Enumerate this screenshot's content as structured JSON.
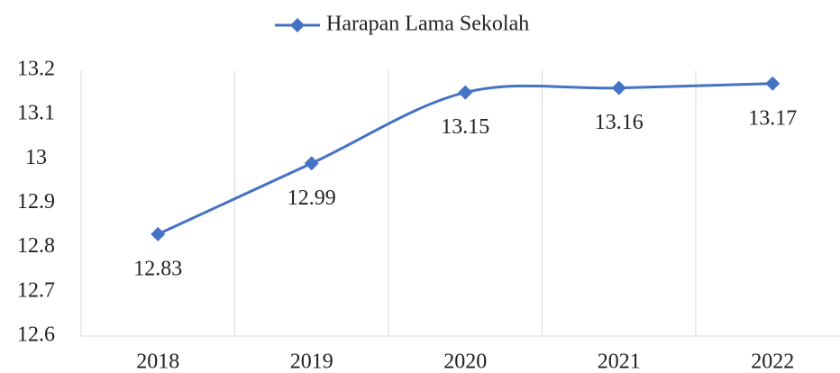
{
  "chart_data": {
    "type": "line",
    "categories": [
      "2018",
      "2019",
      "2020",
      "2021",
      "2022"
    ],
    "series": [
      {
        "name": "Harapan Lama Sekolah",
        "color": "#4472c4",
        "values": [
          12.83,
          12.99,
          13.15,
          13.16,
          13.17
        ]
      }
    ],
    "ylim": [
      12.6,
      13.2
    ],
    "yticks": [
      12.6,
      12.7,
      12.8,
      12.9,
      13,
      13.1,
      13.2
    ],
    "grid": true,
    "smooth": true,
    "legend": "top"
  }
}
